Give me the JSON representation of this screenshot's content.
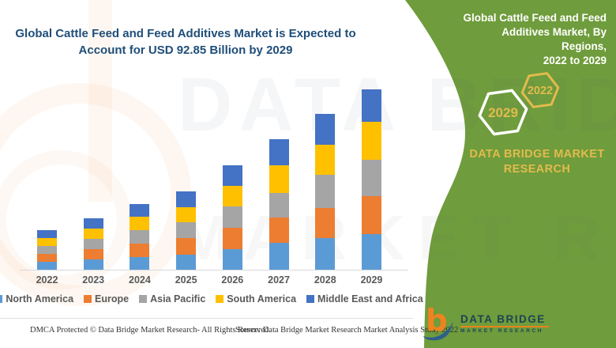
{
  "header": {
    "line1": "Global Cattle Feed and Feed Additives Market is Expected to",
    "line2": "Account for USD 92.85 Billion by 2029"
  },
  "chart_data": {
    "type": "bar",
    "stacked": true,
    "title": "Global Cattle Feed and Feed Additives Market is Expected to Account for USD 92.85 Billion by 2029",
    "unit": "USD Billion",
    "categories": [
      "2022",
      "2023",
      "2024",
      "2025",
      "2026",
      "2027",
      "2028",
      "2029"
    ],
    "series": [
      {
        "name": "North America",
        "color": "#5B9BD5",
        "values": [
          4.1,
          5.4,
          6.5,
          7.9,
          10.7,
          13.7,
          16.1,
          18.2
        ]
      },
      {
        "name": "Europe",
        "color": "#ED7D31",
        "values": [
          3.9,
          5.3,
          6.9,
          8.2,
          10.7,
          13.1,
          15.8,
          19.7
        ]
      },
      {
        "name": "Asia Pacific",
        "color": "#A5A5A5",
        "values": [
          4.1,
          5.2,
          7.1,
          8.2,
          11.0,
          12.8,
          16.8,
          18.6
        ]
      },
      {
        "name": "South America",
        "color": "#FFC000",
        "values": [
          4.2,
          5.3,
          6.8,
          8.0,
          10.6,
          14.3,
          15.8,
          19.7
        ]
      },
      {
        "name": "Middle East and Africa",
        "color": "#4472C4",
        "values": [
          4.0,
          5.1,
          6.5,
          7.9,
          10.6,
          13.2,
          15.8,
          16.7
        ]
      }
    ],
    "totals_2029_note": "2029 stacked total ≈ USD 92.85 Billion",
    "ylim": [
      0,
      95
    ],
    "grid": false,
    "legend_position": "bottom"
  },
  "side_panel": {
    "bg_color": "#6F9C3C",
    "accent_color": "#E2BB4D",
    "heading_lines": {
      "0": "Global Cattle Feed and Feed",
      "1": "Additives Market, By Regions,",
      "2": "2022 to 2029"
    },
    "hexagons": {
      "small": {
        "label": "2022"
      },
      "large": {
        "label": "2029"
      }
    },
    "brand_line1": "DATA BRIDGE MARKET",
    "brand_line2": "RESEARCH"
  },
  "logo": {
    "name": "DATA BRIDGE",
    "subtext": "MARKET RESEARCH"
  },
  "watermark": {
    "line1": "DATA BRIDGE",
    "line2": "MARKET RE"
  },
  "footer": {
    "left": "DMCA Protected © Data Bridge Market Research- All Rights Reserved.",
    "source": "Source: Data Bridge Market Research Market Analysis Study 2022"
  }
}
